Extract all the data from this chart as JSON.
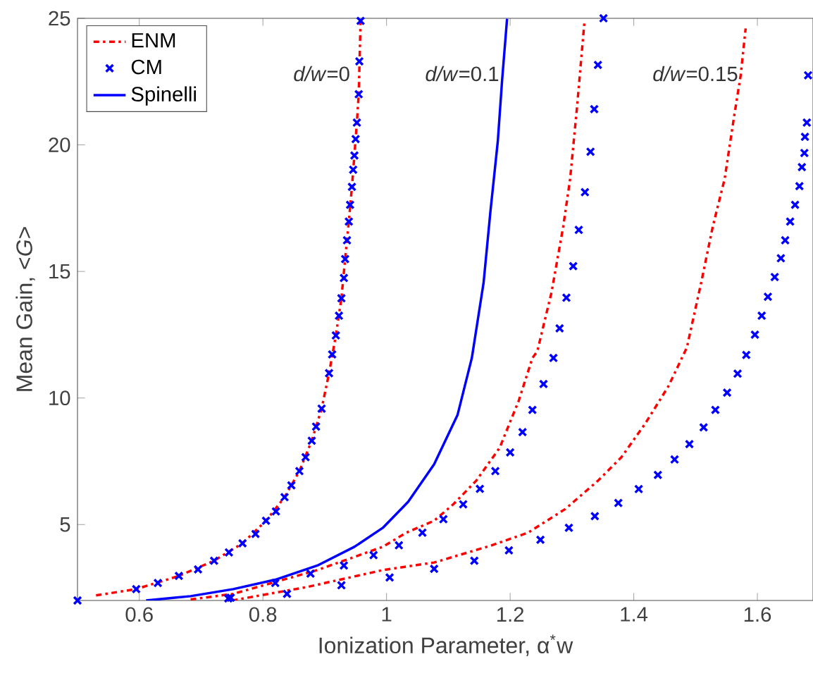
{
  "chart_data": {
    "type": "line",
    "xlabel": "Ionization Parameter, α$^{*}$w",
    "ylabel": "Mean Gain, <*G*>",
    "xlim": [
      0.5,
      1.69
    ],
    "ylim": [
      2,
      25
    ],
    "xticks": [
      0.6,
      0.8,
      1,
      1.2,
      1.4,
      1.6
    ],
    "yticks": [
      5,
      10,
      15,
      20,
      25
    ],
    "grid": false,
    "legend": "top left",
    "annotations": [
      "*d/w*=0",
      "*d/w*=0.1",
      "*d/w*=0.15"
    ],
    "series": [
      {
        "name": "ENM",
        "line_style": "dashdot",
        "color": "#ff0000",
        "x": [
          0.53,
          0.595,
          0.664,
          0.721,
          0.767,
          0.805,
          0.835,
          0.859,
          0.879,
          0.895,
          0.907,
          0.918,
          0.927,
          0.933,
          0.939,
          0.944,
          0.948,
          0.952,
          0.955,
          0.958
        ],
        "values": [
          2.2,
          2.45,
          2.97,
          3.57,
          4.26,
          5.15,
          6.08,
          7.11,
          8.31,
          9.58,
          10.98,
          12.47,
          13.94,
          15.49,
          16.97,
          18.34,
          19.58,
          20.88,
          22.0,
          24.9
        ]
      },
      {
        "name": "CM",
        "type": "scatter",
        "marker": "cross",
        "color": "#0000ff",
        "x": [
          0.5,
          0.595,
          0.63,
          0.664,
          0.695,
          0.721,
          0.745,
          0.767,
          0.788,
          0.805,
          0.821,
          0.835,
          0.846,
          0.859,
          0.869,
          0.879,
          0.886,
          0.895,
          0.907,
          0.912,
          0.918,
          0.923,
          0.927,
          0.931,
          0.933,
          0.936,
          0.939,
          0.941,
          0.944,
          0.946,
          0.948,
          0.95,
          0.952,
          0.955,
          0.956,
          0.958
        ],
        "values": [
          2.0,
          2.45,
          2.69,
          2.97,
          3.23,
          3.57,
          3.9,
          4.26,
          4.63,
          5.15,
          5.52,
          6.08,
          6.55,
          7.11,
          7.66,
          8.31,
          8.87,
          9.58,
          10.98,
          11.72,
          12.47,
          13.25,
          13.94,
          14.74,
          15.49,
          16.23,
          16.97,
          17.63,
          18.34,
          19.02,
          19.58,
          20.23,
          20.88,
          22.0,
          23.3,
          24.9
        ]
      },
      {
        "name": "Spinelli",
        "line_style": "solid",
        "color": "#0000ff",
        "x": [
          0.611,
          0.683,
          0.752,
          0.82,
          0.888,
          0.948,
          0.994,
          1.035,
          1.077,
          1.115,
          1.138,
          1.157,
          1.168,
          1.18,
          1.187,
          1.195
        ],
        "values": [
          2.0,
          2.17,
          2.45,
          2.82,
          3.38,
          4.12,
          4.87,
          5.9,
          7.38,
          9.34,
          11.58,
          14.55,
          17.35,
          20.14,
          22.56,
          24.98
        ]
      },
      {
        "line_style": "dashdot",
        "color": "#ff0000",
        "x": [
          0.683,
          0.752,
          0.888,
          0.994,
          1.032,
          1.077,
          1.108,
          1.145,
          1.183,
          1.214,
          1.236,
          1.244,
          1.267,
          1.286,
          1.297,
          1.308,
          1.32
        ],
        "values": [
          2.04,
          2.26,
          3.2,
          4.12,
          4.68,
          5.15,
          5.8,
          6.73,
          8.03,
          9.9,
          11.58,
          11.85,
          14.18,
          16.79,
          18.65,
          21.44,
          24.8
        ]
      },
      {
        "type": "scatter",
        "marker": "cross",
        "color": "#0000ff",
        "x": [
          0.748,
          0.82,
          0.877,
          0.931,
          0.979,
          1.02,
          1.058,
          1.092,
          1.124,
          1.151,
          1.176,
          1.2,
          1.22,
          1.236,
          1.254,
          1.27,
          1.28,
          1.291,
          1.302,
          1.311,
          1.321,
          1.33,
          1.336,
          1.342,
          1.351
        ],
        "values": [
          2.11,
          2.69,
          3.06,
          3.38,
          3.79,
          4.18,
          4.68,
          5.21,
          5.8,
          6.41,
          7.11,
          7.85,
          8.65,
          9.53,
          10.55,
          11.58,
          12.75,
          13.96,
          15.21,
          16.64,
          18.13,
          19.73,
          21.41,
          23.16,
          25.0
        ]
      },
      {
        "line_style": "dashdot",
        "color": "#ff0000",
        "x": [
          0.75,
          0.873,
          0.994,
          1.077,
          1.168,
          1.229,
          1.289,
          1.342,
          1.38,
          1.418,
          1.456,
          1.486,
          1.509,
          1.528,
          1.547,
          1.562,
          1.573,
          1.581
        ],
        "values": [
          2.0,
          2.54,
          3.2,
          3.5,
          4.16,
          4.68,
          5.61,
          6.73,
          7.66,
          8.97,
          10.46,
          12.0,
          14.55,
          16.79,
          18.65,
          21.07,
          22.75,
          24.6
        ]
      },
      {
        "type": "scatter",
        "marker": "cross",
        "color": "#0000ff",
        "x": [
          0.744,
          0.839,
          0.927,
          1.005,
          1.077,
          1.142,
          1.198,
          1.249,
          1.295,
          1.337,
          1.375,
          1.408,
          1.439,
          1.466,
          1.49,
          1.513,
          1.532,
          1.551,
          1.568,
          1.582,
          1.596,
          1.607,
          1.617,
          1.628,
          1.638,
          1.645,
          1.653,
          1.661,
          1.668,
          1.672,
          1.676,
          1.677,
          1.68,
          1.682
        ],
        "values": [
          2.08,
          2.26,
          2.6,
          2.91,
          3.25,
          3.57,
          3.98,
          4.4,
          4.87,
          5.33,
          5.85,
          6.4,
          6.96,
          7.57,
          8.18,
          8.84,
          9.53,
          10.21,
          10.96,
          11.7,
          12.5,
          13.25,
          14.0,
          14.78,
          15.52,
          16.23,
          16.97,
          17.63,
          18.37,
          19.12,
          19.68,
          20.32,
          20.88,
          22.75
        ]
      }
    ]
  }
}
